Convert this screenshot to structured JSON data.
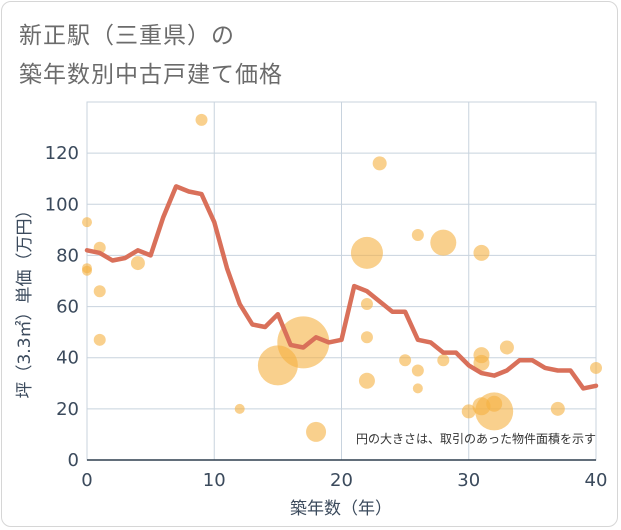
{
  "chart_data": {
    "type": "scatter",
    "title_line1": "新正駅（三重県）の",
    "title_line2": "築年数別中古戸建て価格",
    "xlabel": "築年数（年）",
    "ylabel": "坪（3.3㎡）単価（万円）",
    "xlim": [
      0,
      40
    ],
    "ylim": [
      0,
      140
    ],
    "x_ticks": [
      0,
      10,
      20,
      30,
      40
    ],
    "y_ticks": [
      0,
      20,
      40,
      60,
      80,
      100,
      120
    ],
    "grid": true,
    "note": "円の大きさは、取引のあった物件面積を示す",
    "colors": {
      "bubble": "#f5b041",
      "line": "#d9705a",
      "grid": "#c8d3de"
    },
    "bubbles": [
      {
        "x": 0,
        "y": 93,
        "r": 5
      },
      {
        "x": 0,
        "y": 75,
        "r": 5
      },
      {
        "x": 0,
        "y": 74,
        "r": 5
      },
      {
        "x": 1,
        "y": 83,
        "r": 6
      },
      {
        "x": 1,
        "y": 66,
        "r": 6
      },
      {
        "x": 1,
        "y": 47,
        "r": 6
      },
      {
        "x": 4,
        "y": 77,
        "r": 7
      },
      {
        "x": 9,
        "y": 133,
        "r": 6
      },
      {
        "x": 12,
        "y": 20,
        "r": 5
      },
      {
        "x": 15,
        "y": 37,
        "r": 20
      },
      {
        "x": 17,
        "y": 46,
        "r": 26
      },
      {
        "x": 18,
        "y": 11,
        "r": 10
      },
      {
        "x": 22,
        "y": 81,
        "r": 16
      },
      {
        "x": 22,
        "y": 61,
        "r": 6
      },
      {
        "x": 22,
        "y": 48,
        "r": 6
      },
      {
        "x": 22,
        "y": 31,
        "r": 8
      },
      {
        "x": 23,
        "y": 116,
        "r": 7
      },
      {
        "x": 25,
        "y": 39,
        "r": 6
      },
      {
        "x": 26,
        "y": 88,
        "r": 6
      },
      {
        "x": 26,
        "y": 35,
        "r": 6
      },
      {
        "x": 26,
        "y": 28,
        "r": 5
      },
      {
        "x": 28,
        "y": 85,
        "r": 13
      },
      {
        "x": 28,
        "y": 39,
        "r": 6
      },
      {
        "x": 30,
        "y": 19,
        "r": 7
      },
      {
        "x": 31,
        "y": 81,
        "r": 8
      },
      {
        "x": 31,
        "y": 41,
        "r": 8
      },
      {
        "x": 31,
        "y": 38,
        "r": 8
      },
      {
        "x": 31,
        "y": 21,
        "r": 9
      },
      {
        "x": 32,
        "y": 22,
        "r": 8
      },
      {
        "x": 32,
        "y": 19,
        "r": 19
      },
      {
        "x": 33,
        "y": 44,
        "r": 7
      },
      {
        "x": 37,
        "y": 20,
        "r": 7
      },
      {
        "x": 40,
        "y": 36,
        "r": 6
      }
    ],
    "line": {
      "x": [
        0,
        1,
        2,
        3,
        4,
        5,
        6,
        7,
        8,
        9,
        10,
        11,
        12,
        13,
        14,
        15,
        16,
        17,
        18,
        19,
        20,
        21,
        22,
        23,
        24,
        25,
        26,
        27,
        28,
        29,
        30,
        31,
        32,
        33,
        34,
        35,
        36,
        37,
        38,
        39,
        40
      ],
      "y": [
        82,
        81,
        78,
        79,
        82,
        80,
        95,
        107,
        105,
        104,
        93,
        75,
        61,
        53,
        52,
        57,
        45,
        44,
        48,
        46,
        47,
        68,
        66,
        62,
        58,
        58,
        47,
        46,
        42,
        42,
        37,
        34,
        33,
        35,
        39,
        39,
        36,
        35,
        35,
        28,
        29
      ]
    }
  }
}
